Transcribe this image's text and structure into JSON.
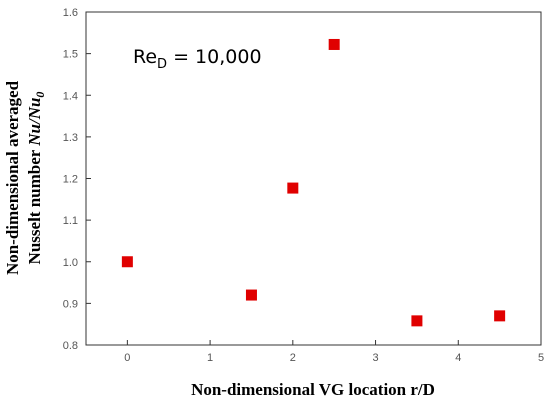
{
  "chart_data": {
    "type": "scatter",
    "x": [
      0,
      1.5,
      2,
      2.5,
      3.5,
      4.5
    ],
    "y": [
      1.0,
      0.92,
      1.177,
      1.522,
      0.858,
      0.87
    ],
    "xlim": [
      -0.5,
      5
    ],
    "ylim": [
      0.8,
      1.6
    ],
    "x_ticks": [
      "0",
      "1",
      "2",
      "3",
      "4",
      "5"
    ],
    "y_ticks": [
      "0.8",
      "0.9",
      "1.0",
      "1.1",
      "1.2",
      "1.3",
      "1.4",
      "1.5",
      "1.6"
    ],
    "xlabel": "Non-dimensional VG location r/D",
    "ylabel": {
      "line1": "Non-dimensional averaged",
      "line2_prefix": "Nusselt number ",
      "line2_italic": "Nu/Nu",
      "line2_sub": "0"
    },
    "annotation": {
      "base": "Re",
      "sub": "D",
      "rest": " = 10,000"
    },
    "marker_color": "#e00000",
    "grid": false,
    "legend": "none"
  }
}
